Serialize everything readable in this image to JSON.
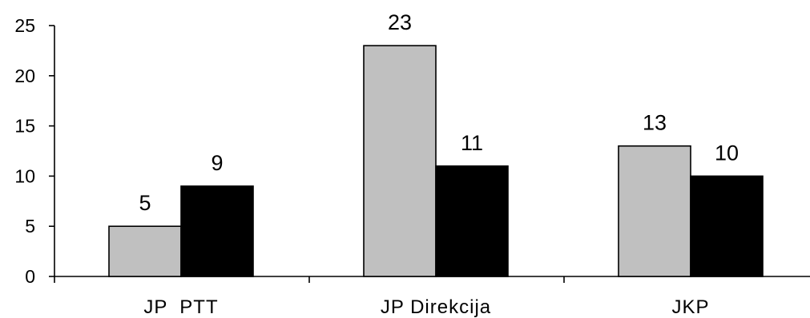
{
  "chart_data": {
    "type": "bar",
    "categories": [
      "JP  PTT",
      "JP Direkcija",
      "JKP"
    ],
    "series": [
      {
        "values": [
          5,
          23,
          13
        ],
        "color": "#c0c0c0"
      },
      {
        "values": [
          9,
          11,
          10
        ],
        "color": "#000000"
      }
    ],
    "y_ticks": [
      "0",
      "5",
      "10",
      "15",
      "20",
      "25"
    ],
    "data_labels": [
      [
        "5",
        "23",
        "13"
      ],
      [
        "9",
        "11",
        "10"
      ]
    ],
    "ylim": [
      0,
      25
    ],
    "grid": false,
    "legend": "none"
  }
}
